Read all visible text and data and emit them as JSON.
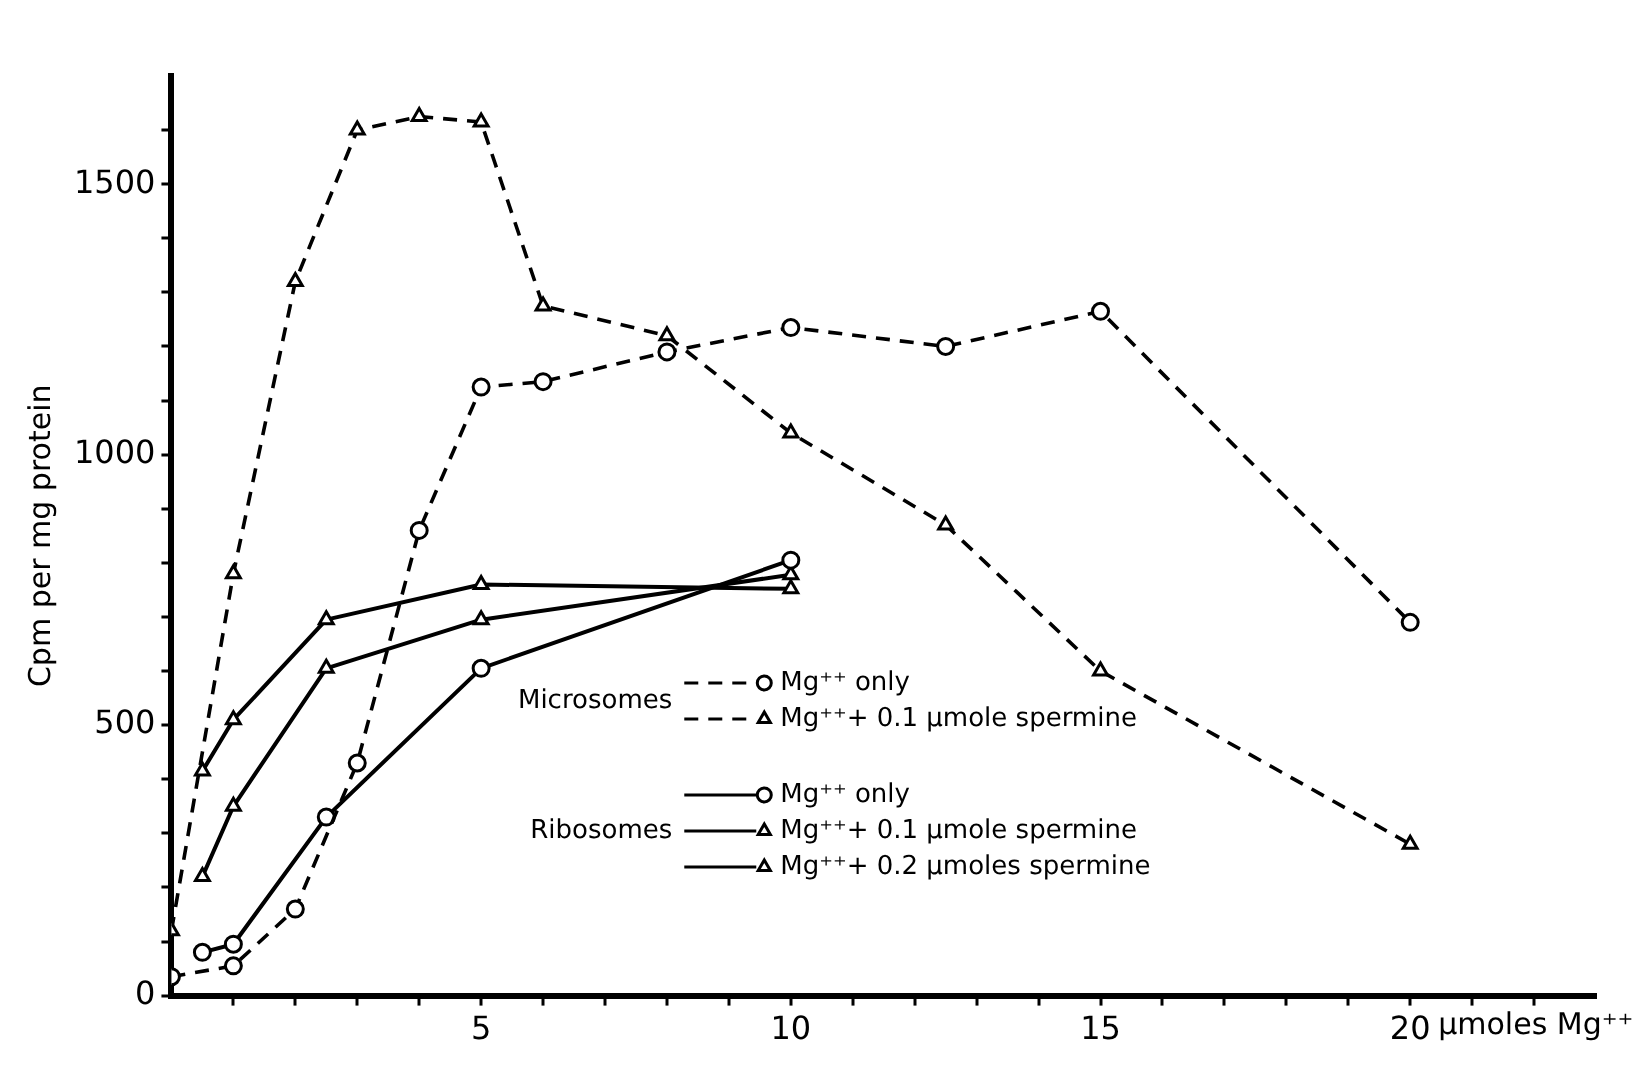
{
  "chart_data": {
    "type": "line",
    "xlabel": "µmoles Mg⁺⁺",
    "ylabel": "Cpm per mg protein",
    "xlim": [
      0,
      23
    ],
    "ylim": [
      0,
      1700
    ],
    "xticks": [
      {
        "value": 1,
        "label": null
      },
      {
        "value": 2,
        "label": null
      },
      {
        "value": 3,
        "label": null
      },
      {
        "value": 4,
        "label": null
      },
      5,
      {
        "value": 6,
        "label": null
      },
      {
        "value": 7,
        "label": null
      },
      {
        "value": 8,
        "label": null
      },
      {
        "value": 9,
        "label": null
      },
      10,
      {
        "value": 11,
        "label": null
      },
      {
        "value": 12,
        "label": null
      },
      {
        "value": 13,
        "label": null
      },
      {
        "value": 14,
        "label": null
      },
      15,
      {
        "value": 16,
        "label": null
      },
      {
        "value": 17,
        "label": null
      },
      {
        "value": 18,
        "label": null
      },
      {
        "value": 19,
        "label": null
      },
      20,
      {
        "value": 21,
        "label": null
      },
      {
        "value": 22,
        "label": null
      }
    ],
    "yticks": [
      0,
      {
        "value": 100,
        "label": null
      },
      {
        "value": 200,
        "label": null
      },
      {
        "value": 300,
        "label": null
      },
      {
        "value": 400,
        "label": null
      },
      500,
      {
        "value": 600,
        "label": null
      },
      {
        "value": 700,
        "label": null
      },
      {
        "value": 800,
        "label": null
      },
      {
        "value": 900,
        "label": null
      },
      1000,
      {
        "value": 1100,
        "label": null
      },
      {
        "value": 1200,
        "label": null
      },
      {
        "value": 1300,
        "label": null
      },
      {
        "value": 1400,
        "label": null
      },
      1500,
      {
        "value": 1600,
        "label": null
      }
    ],
    "grid": false,
    "legend": "bottom",
    "annotations": [
      "Microsomes",
      "Ribosomes"
    ],
    "series": [
      {
        "name": "Mg⁺⁺ only",
        "color": "#000000",
        "marker": "circle",
        "line_style": "dashed",
        "x": [
          0,
          1,
          2,
          3,
          4,
          5,
          6,
          8,
          10,
          12.5,
          15,
          20
        ],
        "values": [
          35,
          55,
          160,
          430,
          860,
          1125,
          1135,
          1190,
          1235,
          1200,
          1265,
          690
        ]
      },
      {
        "name": "Mg⁺⁺+ 0.1 µmole spermine",
        "color": "#000000",
        "marker": "triangle",
        "line_style": "dashed",
        "x": [
          0,
          1,
          2,
          3,
          4,
          5,
          6,
          8,
          10,
          12.5,
          15,
          20
        ],
        "values": [
          120,
          780,
          1320,
          1600,
          1625,
          1615,
          1275,
          1220,
          1040,
          870,
          600,
          280
        ]
      },
      {
        "name": "Mg⁺⁺ only",
        "color": "#000000",
        "marker": "circle",
        "line_style": "solid",
        "x": [
          0.5,
          1,
          2.5,
          5,
          10
        ],
        "values": [
          80,
          95,
          330,
          605,
          805
        ]
      },
      {
        "name": "Mg⁺⁺+ 0.1 µmole spermine",
        "color": "#000000",
        "marker": "triangle",
        "line_style": "solid",
        "x": [
          0.5,
          1,
          2.5,
          5,
          10
        ],
        "values": [
          220,
          350,
          605,
          695,
          778
        ]
      },
      {
        "name": "Mg⁺⁺+ 0.2 µmoles spermine",
        "color": "#000000",
        "marker": "triangle",
        "line_style": "solid",
        "x": [
          0.5,
          1,
          2.5,
          5,
          10
        ],
        "values": [
          415,
          510,
          695,
          760,
          752
        ]
      }
    ]
  }
}
